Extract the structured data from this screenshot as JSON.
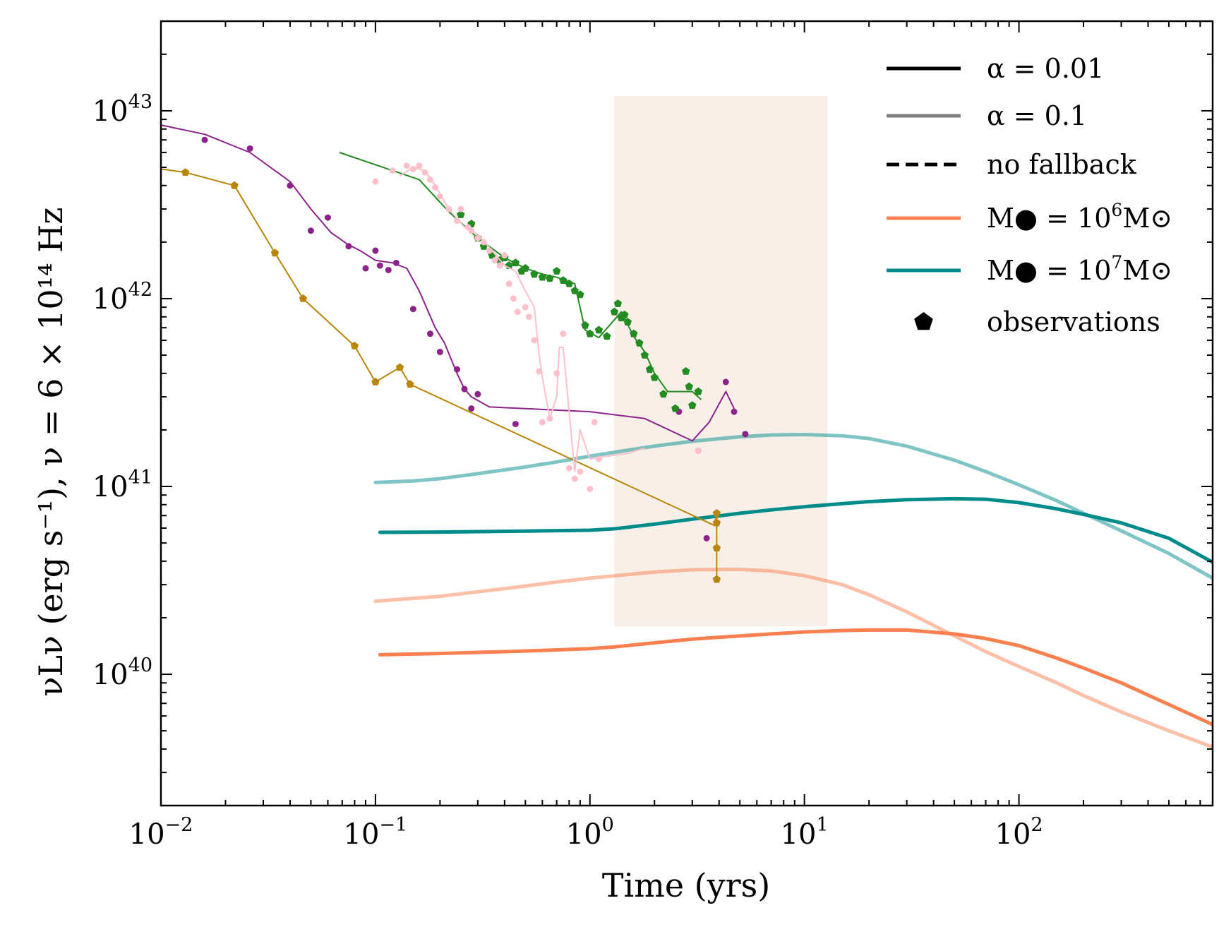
{
  "chart_data": {
    "type": "line",
    "title": "",
    "xlabel": "Time (yrs)",
    "ylabel": "νLν (erg s⁻¹), ν = 6 × 10¹⁴ Hz",
    "xscale": "log",
    "yscale": "log",
    "xlim": [
      0.01,
      800
    ],
    "ylim": [
      2e+39,
      3e+43
    ],
    "x_ticks": [
      {
        "value": 0.01,
        "base": "10",
        "exp": "−2"
      },
      {
        "value": 0.1,
        "base": "10",
        "exp": "−1"
      },
      {
        "value": 1,
        "base": "10",
        "exp": "0"
      },
      {
        "value": 10,
        "base": "10",
        "exp": "1"
      },
      {
        "value": 100,
        "base": "10",
        "exp": "2"
      }
    ],
    "y_ticks": [
      {
        "value": 1e+40,
        "base": "10",
        "exp": "40"
      },
      {
        "value": 1e+41,
        "base": "10",
        "exp": "41"
      },
      {
        "value": 1e+42,
        "base": "10",
        "exp": "42"
      },
      {
        "value": 1e+43,
        "base": "10",
        "exp": "43"
      }
    ],
    "shaded_region": {
      "x": [
        1.3,
        12.8
      ],
      "y": [
        1.8e+40,
        1.2e+43
      ],
      "color": "#f8f0e8"
    },
    "legend": {
      "position": "top-right",
      "entries": [
        {
          "style": "line",
          "color": "#000000",
          "dash": false,
          "text": "α = 0.01"
        },
        {
          "style": "line",
          "color": "#808080",
          "dash": false,
          "text": "α = 0.1"
        },
        {
          "style": "line",
          "color": "#000000",
          "dash": true,
          "text": "no fallback"
        },
        {
          "style": "line",
          "color": "#fa8050",
          "dash": false,
          "text": "M● = 10⁶M⊙",
          "prefix": "M● = 10",
          "exp": "6",
          "suffix": "M⊙"
        },
        {
          "style": "line",
          "color": "#008b8b",
          "dash": false,
          "text": "M● = 10⁷M⊙",
          "prefix": "M● = 10",
          "exp": "7",
          "suffix": "M⊙"
        },
        {
          "style": "marker",
          "color": "#000000",
          "dash": false,
          "text": "observations"
        }
      ]
    },
    "series": [
      {
        "name": "M=1e7, alpha=0.1",
        "kind": "model",
        "color": "#008b8b",
        "opacity": 0.5,
        "width": 5,
        "x": [
          0.1,
          0.15,
          0.2,
          0.3,
          0.5,
          0.7,
          1,
          1.5,
          2,
          3,
          5,
          7,
          10,
          15,
          20,
          30,
          50,
          70,
          100,
          150,
          200,
          300,
          500,
          800
        ],
        "y": [
          1.05e+41,
          1.07e+41,
          1.1e+41,
          1.17e+41,
          1.27e+41,
          1.35e+41,
          1.45e+41,
          1.56e+41,
          1.64e+41,
          1.74e+41,
          1.84e+41,
          1.88e+41,
          1.89e+41,
          1.86e+41,
          1.8e+41,
          1.64e+41,
          1.38e+41,
          1.2e+41,
          1.02e+41,
          8.4e+40,
          7.2e+40,
          5.8e+40,
          4.4e+40,
          3.25e+40
        ]
      },
      {
        "name": "M=1e7, alpha=0.01",
        "kind": "model",
        "color": "#008b8b",
        "opacity": 1,
        "width": 5,
        "x": [
          0.105,
          0.2,
          0.5,
          1,
          1.3,
          2,
          3,
          5,
          7,
          10,
          15,
          20,
          30,
          50,
          70,
          100,
          150,
          200,
          300,
          500,
          800
        ],
        "y": [
          5.7e+40,
          5.72e+40,
          5.78e+40,
          5.85e+40,
          5.95e+40,
          6.3e+40,
          6.7e+40,
          7.2e+40,
          7.5e+40,
          7.8e+40,
          8.1e+40,
          8.3e+40,
          8.5e+40,
          8.6e+40,
          8.55e+40,
          8.2e+40,
          7.6e+40,
          7.1e+40,
          6.4e+40,
          5.3e+40,
          3.95e+40
        ]
      },
      {
        "name": "M=1e6, alpha=0.1",
        "kind": "model",
        "color": "#fa8050",
        "opacity": 0.5,
        "width": 5,
        "x": [
          0.1,
          0.2,
          0.3,
          0.5,
          0.7,
          1,
          1.5,
          2,
          3,
          5,
          7,
          10,
          15,
          20,
          30,
          50,
          70,
          100,
          150,
          200,
          300,
          500,
          800
        ],
        "y": [
          2.45e+40,
          2.6e+40,
          2.75e+40,
          2.95e+40,
          3.1e+40,
          3.25e+40,
          3.4e+40,
          3.5e+40,
          3.6e+40,
          3.62e+40,
          3.55e+40,
          3.35e+40,
          3e+40,
          2.65e+40,
          2.15e+40,
          1.6e+40,
          1.32e+40,
          1.1e+40,
          9e+39,
          7.7e+39,
          6.3e+39,
          5e+39,
          4.1e+39
        ]
      },
      {
        "name": "M=1e6, alpha=0.01",
        "kind": "model",
        "color": "#fa8050",
        "opacity": 1,
        "width": 5,
        "x": [
          0.105,
          0.2,
          0.5,
          1,
          1.3,
          2,
          3,
          5,
          7,
          10,
          15,
          20,
          30,
          50,
          70,
          100,
          150,
          200,
          300,
          500,
          800
        ],
        "y": [
          1.27e+40,
          1.29e+40,
          1.33e+40,
          1.37e+40,
          1.4e+40,
          1.47e+40,
          1.54e+40,
          1.6e+40,
          1.64e+40,
          1.68e+40,
          1.71e+40,
          1.72e+40,
          1.72e+40,
          1.64e+40,
          1.55e+40,
          1.42e+40,
          1.22e+40,
          1.08e+40,
          9e+39,
          6.9e+39,
          5.4e+39
        ]
      },
      {
        "name": "purple observations",
        "kind": "obs",
        "color": "#8b238b",
        "marker": "circle",
        "opacity": 1,
        "width": 2,
        "line_x": [
          0.01,
          0.016,
          0.026,
          0.04,
          0.05,
          0.062,
          0.074,
          0.085,
          0.1,
          0.12,
          0.14,
          0.16,
          0.19,
          0.21,
          0.24,
          0.26,
          0.28,
          0.34,
          1,
          1.8,
          3,
          3.6,
          4.3,
          4.7
        ],
        "line_y": [
          8.4e+42,
          7.5e+42,
          6e+42,
          4.2e+42,
          3e+42,
          2.25e+42,
          1.95e+42,
          1.8e+42,
          1.6e+42,
          1.55e+42,
          1.45e+42,
          1.1e+42,
          7e+41,
          5.8e+41,
          4e+41,
          3.3e+41,
          3e+41,
          2.65e+41,
          2.5e+41,
          2.3e+41,
          1.75e+41,
          2.2e+41,
          3.2e+41,
          2.6e+41
        ],
        "x": [
          0.016,
          0.026,
          0.04,
          0.05,
          0.06,
          0.075,
          0.09,
          0.1,
          0.105,
          0.115,
          0.125,
          0.15,
          0.18,
          0.2,
          0.24,
          0.26,
          0.28,
          0.3,
          0.45,
          2.6,
          3.2,
          3.5,
          4.3,
          4.7,
          5.3
        ],
        "y": [
          7e+42,
          6.3e+42,
          4e+42,
          2.3e+42,
          2.7e+42,
          1.9e+42,
          1.45e+42,
          1.8e+42,
          1.5e+42,
          1.42e+42,
          1.55e+42,
          8.8e+41,
          6.5e+41,
          5.2e+41,
          4.2e+41,
          3.3e+41,
          2.6e+41,
          3.1e+41,
          2.15e+41,
          2.5e+41,
          1.55e+41,
          5.3e+40,
          3.6e+41,
          2.5e+41,
          1.9e+41
        ]
      },
      {
        "name": "gold observations",
        "kind": "obs",
        "color": "#b8860b",
        "marker": "pentagon",
        "opacity": 1,
        "width": 2,
        "line_x": [
          0.01,
          0.013,
          0.022,
          0.034,
          0.046,
          0.08,
          0.1,
          0.13,
          0.145,
          3.8,
          3.9,
          3.9,
          3.9,
          3.9
        ],
        "line_y": [
          4.9e+42,
          4.7e+42,
          4e+42,
          1.75e+42,
          1e+42,
          5.6e+41,
          3.6e+41,
          4.3e+41,
          3.5e+41,
          6.2e+40,
          7.2e+40,
          6.4e+40,
          4.7e+40,
          3.2e+40
        ],
        "x": [
          0.013,
          0.022,
          0.034,
          0.046,
          0.08,
          0.1,
          0.13,
          0.145,
          3.9,
          3.9,
          3.9,
          3.9
        ],
        "y": [
          4.7e+42,
          4e+42,
          1.75e+42,
          1e+42,
          5.6e+41,
          3.6e+41,
          4.3e+41,
          3.5e+41,
          7.2e+40,
          6.4e+40,
          4.7e+40,
          3.2e+40
        ]
      },
      {
        "name": "green observations",
        "kind": "obs",
        "color": "#228b22",
        "marker": "pentagon",
        "opacity": 1,
        "width": 2,
        "line_x": [
          0.068,
          0.16,
          0.22,
          0.3,
          0.4,
          0.5,
          0.6,
          0.7,
          0.85,
          0.95,
          1.1,
          1.4,
          1.6,
          1.8,
          2,
          2.3,
          3,
          3.3
        ],
        "line_y": [
          6e+42,
          4.3e+42,
          2.9e+42,
          2.1e+42,
          1.65e+42,
          1.45e+42,
          1.35e+42,
          1.3e+42,
          1.2e+42,
          6.8e+41,
          6.2e+41,
          8.5e+41,
          6.3e+41,
          5.2e+41,
          4e+41,
          3.2e+41,
          3.2e+41,
          2.9e+41
        ],
        "x": [
          0.25,
          0.28,
          0.3,
          0.32,
          0.35,
          0.38,
          0.4,
          0.42,
          0.45,
          0.48,
          0.5,
          0.55,
          0.6,
          0.65,
          0.7,
          0.75,
          0.8,
          0.85,
          0.9,
          0.95,
          1,
          1.1,
          1.2,
          1.3,
          1.35,
          1.4,
          1.45,
          1.5,
          1.6,
          1.7,
          1.8,
          1.9,
          2,
          2.2,
          2.5,
          2.8,
          2.9,
          3,
          3.2
        ],
        "y": [
          2.8e+42,
          2.5e+42,
          2.1e+42,
          1.9e+42,
          1.7e+42,
          1.6e+42,
          1.65e+42,
          1.5e+42,
          1.55e+42,
          1.4e+42,
          1.45e+42,
          1.35e+42,
          1.3e+42,
          1.28e+42,
          1.4e+42,
          1.25e+42,
          1.2e+42,
          1.1e+42,
          1.05e+42,
          7.2e+41,
          6.5e+41,
          6.8e+41,
          6.3e+41,
          8.5e+41,
          9.4e+41,
          7.9e+41,
          8.2e+41,
          7.5e+41,
          6.5e+41,
          5.8e+41,
          5e+41,
          4.2e+41,
          3.8e+41,
          3.1e+41,
          2.6e+41,
          4.1e+41,
          3.4e+41,
          2.7e+41,
          3.2e+41
        ]
      },
      {
        "name": "pink observations",
        "kind": "obs",
        "color": "#ffc0cb",
        "marker": "circle",
        "opacity": 1,
        "width": 2,
        "line_x": [
          0.13,
          0.15,
          0.17,
          0.19,
          0.22,
          0.26,
          0.3,
          0.35,
          0.4,
          0.45,
          0.5,
          0.55,
          0.58,
          0.6,
          0.65,
          0.7,
          0.72,
          0.75,
          0.8,
          0.85,
          0.9,
          1,
          1.2,
          1.5,
          1.8
        ],
        "line_y": [
          4.5e+42,
          5e+42,
          4.8e+42,
          4e+42,
          3e+42,
          2.4e+42,
          2.2e+42,
          1.8e+42,
          1.5e+42,
          1.4e+42,
          1.1e+42,
          9e+41,
          5e+41,
          3.8e+41,
          2.3e+41,
          3e+41,
          5.5e+41,
          5.5e+41,
          2.5e+41,
          1.2e+41,
          2e+41,
          1.4e+41,
          1.45e+41,
          1.5e+41,
          1.6e+41
        ],
        "x": [
          0.1,
          0.12,
          0.14,
          0.15,
          0.16,
          0.17,
          0.18,
          0.19,
          0.2,
          0.22,
          0.24,
          0.25,
          0.27,
          0.28,
          0.3,
          0.32,
          0.34,
          0.36,
          0.38,
          0.4,
          0.42,
          0.44,
          0.46,
          0.5,
          0.52,
          0.55,
          0.58,
          0.6,
          0.65,
          0.7,
          0.75,
          0.8,
          0.85,
          0.9,
          1,
          1.05,
          1.1,
          3.2
        ],
        "y": [
          4.2e+42,
          4.8e+42,
          5.1e+42,
          4.9e+42,
          5.1e+42,
          4.7e+42,
          4.3e+42,
          3.9e+42,
          3.5e+42,
          3e+42,
          2.6e+42,
          3e+42,
          2.4e+42,
          2.3e+42,
          2.1e+42,
          2e+42,
          1.8e+42,
          1.6e+42,
          1.5e+42,
          1.7e+42,
          1.2e+42,
          1e+42,
          8.5e+41,
          9e+41,
          8e+41,
          6e+41,
          4.1e+41,
          2.2e+41,
          2.3e+41,
          4e+41,
          6.5e+41,
          1.25e+41,
          1.1e+41,
          1.2e+41,
          9.7e+40,
          2.2e+41,
          1.4e+41,
          1.55e+41
        ]
      }
    ]
  }
}
